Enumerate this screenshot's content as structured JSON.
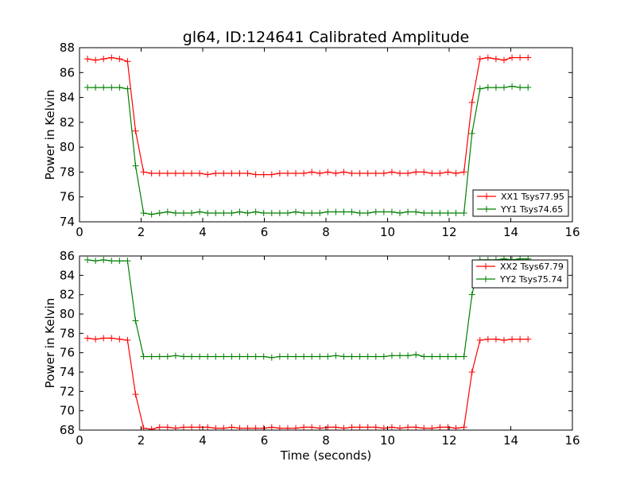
{
  "figure": {
    "title": "gl64, ID:124641 Calibrated Amplitude",
    "xlabel": "Time (seconds)"
  },
  "chart_data": [
    {
      "type": "line",
      "title": "gl64, ID:124641 Calibrated Amplitude",
      "xlabel": "",
      "ylabel": "Power in Kelvin",
      "xlim": [
        0,
        16
      ],
      "ylim": [
        74,
        88
      ],
      "xticks": [
        0,
        2,
        4,
        6,
        8,
        10,
        12,
        14,
        16
      ],
      "yticks": [
        74,
        76,
        78,
        80,
        82,
        84,
        86,
        88
      ],
      "grid": false,
      "legend_position": "lower-right",
      "x": [
        0.26,
        0.52,
        0.78,
        1.04,
        1.3,
        1.56,
        1.82,
        2.08,
        2.34,
        2.6,
        2.86,
        3.12,
        3.38,
        3.64,
        3.9,
        4.16,
        4.42,
        4.68,
        4.94,
        5.2,
        5.46,
        5.72,
        5.98,
        6.24,
        6.5,
        6.76,
        7.02,
        7.28,
        7.54,
        7.8,
        8.06,
        8.32,
        8.58,
        8.84,
        9.1,
        9.36,
        9.62,
        9.88,
        10.14,
        10.4,
        10.66,
        10.92,
        11.18,
        11.44,
        11.7,
        11.96,
        12.22,
        12.48,
        12.74,
        13.0,
        13.26,
        13.52,
        13.78,
        14.04,
        14.3,
        14.56
      ],
      "series": [
        {
          "name": "XX1 Tsys77.95",
          "color": "#ff0000",
          "values": [
            87.1,
            87.0,
            87.1,
            87.2,
            87.1,
            86.9,
            81.3,
            78.0,
            77.9,
            77.9,
            77.9,
            77.9,
            77.9,
            77.9,
            77.9,
            77.8,
            77.9,
            77.9,
            77.9,
            77.9,
            77.9,
            77.8,
            77.8,
            77.8,
            77.9,
            77.9,
            77.9,
            77.9,
            78.0,
            77.9,
            78.0,
            77.9,
            78.0,
            77.9,
            77.9,
            77.9,
            77.9,
            77.9,
            78.0,
            77.9,
            77.9,
            78.0,
            78.0,
            77.9,
            77.9,
            78.0,
            77.9,
            78.0,
            83.6,
            87.1,
            87.2,
            87.1,
            87.0,
            87.2,
            87.2,
            87.2
          ]
        },
        {
          "name": "YY1 Tsys74.65",
          "color": "#008000",
          "values": [
            84.8,
            84.8,
            84.8,
            84.8,
            84.8,
            84.7,
            78.5,
            74.7,
            74.6,
            74.7,
            74.8,
            74.7,
            74.7,
            74.7,
            74.8,
            74.7,
            74.7,
            74.7,
            74.7,
            74.8,
            74.7,
            74.8,
            74.7,
            74.7,
            74.7,
            74.7,
            74.8,
            74.7,
            74.7,
            74.7,
            74.8,
            74.8,
            74.8,
            74.8,
            74.7,
            74.7,
            74.8,
            74.8,
            74.8,
            74.7,
            74.8,
            74.8,
            74.7,
            74.7,
            74.7,
            74.7,
            74.7,
            74.7,
            81.1,
            84.7,
            84.8,
            84.8,
            84.8,
            84.9,
            84.8,
            84.8
          ]
        }
      ]
    },
    {
      "type": "line",
      "title": "",
      "xlabel": "Time (seconds)",
      "ylabel": "Power in Kelvin",
      "xlim": [
        0,
        16
      ],
      "ylim": [
        68,
        86
      ],
      "xticks": [
        0,
        2,
        4,
        6,
        8,
        10,
        12,
        14,
        16
      ],
      "yticks": [
        68,
        70,
        72,
        74,
        76,
        78,
        80,
        82,
        84,
        86
      ],
      "grid": false,
      "legend_position": "upper-right",
      "x": [
        0.26,
        0.52,
        0.78,
        1.04,
        1.3,
        1.56,
        1.82,
        2.08,
        2.34,
        2.6,
        2.86,
        3.12,
        3.38,
        3.64,
        3.9,
        4.16,
        4.42,
        4.68,
        4.94,
        5.2,
        5.46,
        5.72,
        5.98,
        6.24,
        6.5,
        6.76,
        7.02,
        7.28,
        7.54,
        7.8,
        8.06,
        8.32,
        8.58,
        8.84,
        9.1,
        9.36,
        9.62,
        9.88,
        10.14,
        10.4,
        10.66,
        10.92,
        11.18,
        11.44,
        11.7,
        11.96,
        12.22,
        12.48,
        12.74,
        13.0,
        13.26,
        13.52,
        13.78,
        14.04,
        14.3,
        14.56
      ],
      "series": [
        {
          "name": "XX2 Tsys67.79",
          "color": "#ff0000",
          "values": [
            77.5,
            77.4,
            77.5,
            77.5,
            77.4,
            77.3,
            71.7,
            68.2,
            68.1,
            68.3,
            68.3,
            68.2,
            68.3,
            68.3,
            68.3,
            68.3,
            68.2,
            68.2,
            68.3,
            68.2,
            68.2,
            68.2,
            68.2,
            68.3,
            68.2,
            68.2,
            68.2,
            68.3,
            68.3,
            68.2,
            68.3,
            68.3,
            68.2,
            68.3,
            68.3,
            68.3,
            68.3,
            68.2,
            68.3,
            68.2,
            68.3,
            68.3,
            68.2,
            68.2,
            68.3,
            68.3,
            68.2,
            68.3,
            74.0,
            77.3,
            77.4,
            77.4,
            77.3,
            77.4,
            77.4,
            77.4
          ]
        },
        {
          "name": "YY2 Tsys75.74",
          "color": "#008000",
          "values": [
            85.6,
            85.5,
            85.6,
            85.5,
            85.5,
            85.5,
            79.3,
            75.6,
            75.6,
            75.6,
            75.6,
            75.7,
            75.6,
            75.6,
            75.6,
            75.6,
            75.6,
            75.6,
            75.6,
            75.6,
            75.6,
            75.6,
            75.6,
            75.5,
            75.6,
            75.6,
            75.6,
            75.6,
            75.6,
            75.6,
            75.6,
            75.7,
            75.6,
            75.6,
            75.6,
            75.6,
            75.6,
            75.6,
            75.7,
            75.7,
            75.7,
            75.8,
            75.6,
            75.6,
            75.6,
            75.6,
            75.6,
            75.6,
            82.0,
            85.6,
            85.6,
            85.6,
            85.7,
            85.6,
            85.7,
            85.7
          ]
        }
      ]
    }
  ]
}
